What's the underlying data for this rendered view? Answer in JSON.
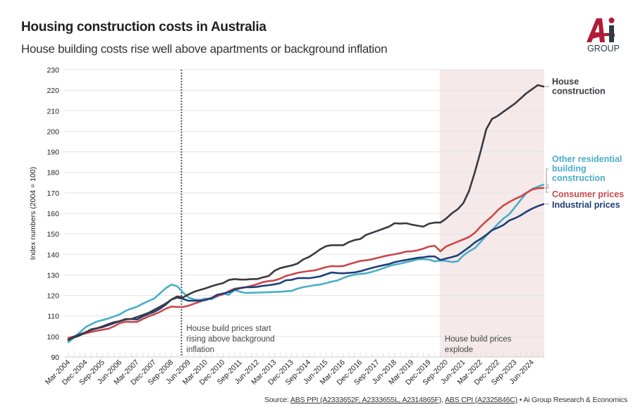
{
  "header": {
    "title": "Housing construction costs in Australia",
    "subtitle": "House building costs rise well above apartments or background inflation",
    "logo_text": "Ai GROUP"
  },
  "source": {
    "prefix": "Source: ",
    "link1": "ABS PPI (A2333652F, A2333655L, A2314865F)",
    "sep": ", ",
    "link2": "ABS CPI (A2325846C)",
    "suffix": " • Ai Group Research & Economics"
  },
  "chart_data": {
    "type": "line",
    "title": "Housing construction costs in Australia",
    "ylabel": "Index numbers (2004 = 100)",
    "xlabel": "",
    "ylim": [
      90,
      230
    ],
    "yticks": [
      90,
      100,
      110,
      120,
      130,
      140,
      150,
      160,
      170,
      180,
      190,
      200,
      210,
      220,
      230
    ],
    "grid": true,
    "x_start": "Mar-2004",
    "x_end": "Dec-2024",
    "x_frequency": "quarterly",
    "xtick_labels": [
      "Mar-2004",
      "Dec-2004",
      "Sep-2005",
      "Jun-2006",
      "Mar-2007",
      "Dec-2007",
      "Sep-2008",
      "Jun-2009",
      "Mar-2010",
      "Dec-2010",
      "Sep-2011",
      "Jun-2012",
      "Mar-2013",
      "Dec-2013",
      "Sep-2014",
      "Jun-2015",
      "Mar-2016",
      "Dec-2016",
      "Sep-2017",
      "Jun-2018",
      "Mar-2019",
      "Dec-2019",
      "Sep-2020",
      "Jun-2021",
      "Mar-2022",
      "Dec-2022",
      "Sep-2023",
      "Jun-2024"
    ],
    "series": [
      {
        "name": "House construction",
        "label_lines": [
          "House",
          "construction"
        ],
        "color": "#3a3a42",
        "values": [
          98.5,
          99.5,
          100.5,
          102,
          103.5,
          104,
          105,
          106,
          107,
          107.5,
          108.5,
          108.5,
          109.5,
          110.5,
          111.5,
          113,
          114.5,
          116,
          118,
          119.5,
          119,
          120.5,
          121.8,
          122.7,
          123.5,
          124.5,
          125.3,
          126,
          127.5,
          128,
          127.7,
          127.7,
          128,
          128,
          128.8,
          129.5,
          132,
          133.3,
          134,
          134.6,
          135.5,
          137.5,
          138.7,
          140.5,
          142.5,
          144,
          144.5,
          144.5,
          144.5,
          146,
          147,
          147.5,
          149.5,
          150.5,
          151.5,
          152.5,
          153.5,
          155.2,
          155,
          155.2,
          154.5,
          154,
          153.5,
          155,
          155.5,
          155.5,
          157.5,
          160,
          162,
          165,
          171,
          180,
          190,
          201,
          206,
          207.5,
          209.5,
          211.5,
          213.5,
          216,
          218.5,
          220.5,
          222.5,
          221.8
        ]
      },
      {
        "name": "Other residential building construction",
        "label_lines": [
          "Other residential",
          "building",
          "construction"
        ],
        "color": "#4aaec8",
        "values": [
          97.2,
          99.5,
          102,
          104.5,
          106,
          107.3,
          108,
          108.8,
          109.8,
          110.8,
          112.5,
          113.6,
          114.5,
          116,
          117.3,
          118.5,
          121,
          123.5,
          125.3,
          124.5,
          121.5,
          119,
          118,
          117.8,
          118.5,
          118.1,
          119.5,
          120.9,
          120.3,
          122.6,
          121.8,
          121.2,
          121.3,
          121.4,
          121.5,
          121.6,
          121.7,
          121.8,
          122,
          122.2,
          123.3,
          124,
          124.5,
          125,
          125.3,
          126,
          126.7,
          127.3,
          128.5,
          129.5,
          130.1,
          130.5,
          130.8,
          131.5,
          132.3,
          133.3,
          134.3,
          135,
          135.5,
          136.2,
          136.8,
          137.6,
          137.7,
          137.5,
          136.6,
          137,
          136.8,
          136.3,
          136.6,
          139.5,
          141.5,
          143,
          146,
          149.2,
          151.8,
          154.8,
          157.5,
          159.5,
          163,
          166.5,
          169.8,
          171.8,
          173,
          174
        ]
      },
      {
        "name": "Consumer prices",
        "label_lines": [
          "Consumer prices"
        ],
        "color": "#c9474a",
        "values": [
          99.3,
          100,
          100.8,
          101.5,
          102.2,
          102.8,
          103.3,
          103.8,
          105,
          106.5,
          107.2,
          107.1,
          107.1,
          108.5,
          109.8,
          110.8,
          112,
          113.5,
          114.6,
          114.4,
          114.4,
          115,
          116,
          117,
          118,
          118.8,
          119.7,
          120.5,
          122,
          123.3,
          123.7,
          124,
          124.7,
          125.5,
          126.5,
          127,
          127.3,
          128.2,
          129.5,
          130.2,
          131,
          131.5,
          131.9,
          132.2,
          133,
          133.8,
          134.3,
          134.2,
          134.3,
          135.2,
          136,
          136.8,
          137.1,
          137.6,
          138.3,
          139,
          139.6,
          140.1,
          140.6,
          141.4,
          141.5,
          142,
          142.8,
          143.8,
          144.2,
          141.5,
          143.9,
          145,
          146.2,
          147.3,
          148.5,
          150.5,
          153.5,
          156.2,
          158.6,
          161.5,
          163.8,
          165.5,
          167,
          168.2,
          170,
          171.6,
          172.2,
          172.4
        ]
      },
      {
        "name": "Industrial prices",
        "label_lines": [
          "Industrial prices"
        ],
        "color": "#1f3f78",
        "values": [
          98.2,
          100,
          101,
          102,
          103.2,
          104,
          104.6,
          105.5,
          106.5,
          107.5,
          108.3,
          108.5,
          108.3,
          109.8,
          111,
          112,
          113.5,
          115.5,
          118,
          119,
          118.3,
          117.4,
          117.4,
          117.5,
          117.8,
          118.8,
          120.3,
          120.9,
          121.6,
          122.8,
          123.5,
          124,
          124,
          124.2,
          124.7,
          125,
          125.4,
          126,
          127.4,
          127.6,
          128.4,
          128.5,
          128.4,
          128.8,
          129.3,
          130.3,
          131.2,
          130.9,
          130.8,
          131,
          131.2,
          131.8,
          132.6,
          133.4,
          134.1,
          134.7,
          135.3,
          136.2,
          136.8,
          137.3,
          137.8,
          138.3,
          138.6,
          139,
          139,
          137.3,
          138,
          138.7,
          139.5,
          141.5,
          143.5,
          145.8,
          147.5,
          149.5,
          151.8,
          153,
          154.3,
          156.5,
          157.6,
          159,
          160.8,
          162.3,
          163.5,
          164.5
        ]
      }
    ],
    "annotations": [
      {
        "at": "Mar-2009",
        "style": "dotted-vertical-line",
        "text_lines": [
          "House build prices start",
          "rising above background",
          "inflation"
        ]
      },
      {
        "from": "Jun-2020",
        "to": "Dec-2024",
        "style": "shaded-region",
        "shade_color": "#f5e9e9",
        "text_lines": [
          "House build prices",
          "explode"
        ]
      }
    ]
  }
}
